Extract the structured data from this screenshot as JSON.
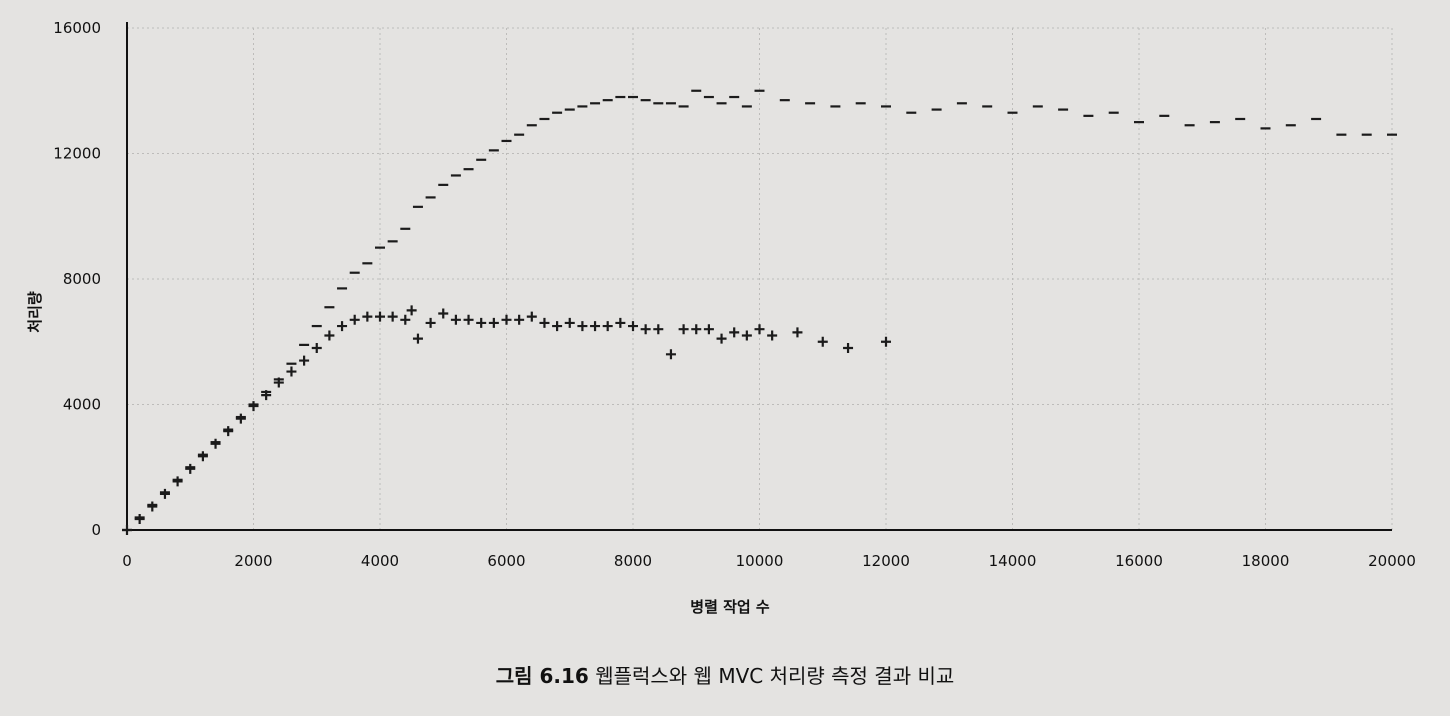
{
  "chart_data": {
    "type": "scatter",
    "xlabel": "병렬 작업 수",
    "ylabel": "처리량",
    "xlim": [
      0,
      20000
    ],
    "ylim": [
      0,
      16000
    ],
    "x_ticks": [
      0,
      2000,
      4000,
      6000,
      8000,
      10000,
      12000,
      14000,
      16000,
      18000,
      20000
    ],
    "y_ticks": [
      0,
      4000,
      8000,
      12000,
      16000
    ],
    "grid": true,
    "series": [
      {
        "marker": "dash",
        "points": [
          [
            0,
            0
          ],
          [
            200,
            400
          ],
          [
            400,
            800
          ],
          [
            600,
            1200
          ],
          [
            800,
            1600
          ],
          [
            1000,
            2000
          ],
          [
            1200,
            2400
          ],
          [
            1400,
            2800
          ],
          [
            1600,
            3200
          ],
          [
            1800,
            3600
          ],
          [
            2000,
            4000
          ],
          [
            2200,
            4400
          ],
          [
            2400,
            4800
          ],
          [
            2600,
            5300
          ],
          [
            2800,
            5900
          ],
          [
            3000,
            6500
          ],
          [
            3200,
            7100
          ],
          [
            3400,
            7700
          ],
          [
            3600,
            8200
          ],
          [
            3800,
            8500
          ],
          [
            4000,
            9000
          ],
          [
            4200,
            9200
          ],
          [
            4400,
            9600
          ],
          [
            4600,
            10300
          ],
          [
            4800,
            10600
          ],
          [
            5000,
            11000
          ],
          [
            5200,
            11300
          ],
          [
            5400,
            11500
          ],
          [
            5600,
            11800
          ],
          [
            5800,
            12100
          ],
          [
            6000,
            12400
          ],
          [
            6200,
            12600
          ],
          [
            6400,
            12900
          ],
          [
            6600,
            13100
          ],
          [
            6800,
            13300
          ],
          [
            7000,
            13400
          ],
          [
            7200,
            13500
          ],
          [
            7400,
            13600
          ],
          [
            7600,
            13700
          ],
          [
            7800,
            13800
          ],
          [
            8000,
            13800
          ],
          [
            8200,
            13700
          ],
          [
            8400,
            13600
          ],
          [
            8600,
            13600
          ],
          [
            8800,
            13500
          ],
          [
            9000,
            14000
          ],
          [
            9200,
            13800
          ],
          [
            9400,
            13600
          ],
          [
            9600,
            13800
          ],
          [
            9800,
            13500
          ],
          [
            10000,
            14000
          ],
          [
            10400,
            13700
          ],
          [
            10800,
            13600
          ],
          [
            11200,
            13500
          ],
          [
            11600,
            13600
          ],
          [
            12000,
            13500
          ],
          [
            12400,
            13300
          ],
          [
            12800,
            13400
          ],
          [
            13200,
            13600
          ],
          [
            13600,
            13500
          ],
          [
            14000,
            13300
          ],
          [
            14400,
            13500
          ],
          [
            14800,
            13400
          ],
          [
            15200,
            13200
          ],
          [
            15600,
            13300
          ],
          [
            16000,
            13000
          ],
          [
            16400,
            13200
          ],
          [
            16800,
            12900
          ],
          [
            17200,
            13000
          ],
          [
            17600,
            13100
          ],
          [
            18000,
            12800
          ],
          [
            18400,
            12900
          ],
          [
            18800,
            13100
          ],
          [
            19200,
            12600
          ],
          [
            19600,
            12600
          ],
          [
            20000,
            12600
          ]
        ]
      },
      {
        "marker": "plus",
        "points": [
          [
            0,
            0
          ],
          [
            200,
            350
          ],
          [
            400,
            750
          ],
          [
            600,
            1150
          ],
          [
            800,
            1550
          ],
          [
            1000,
            1950
          ],
          [
            1200,
            2350
          ],
          [
            1400,
            2750
          ],
          [
            1600,
            3150
          ],
          [
            1800,
            3550
          ],
          [
            2000,
            3950
          ],
          [
            2200,
            4300
          ],
          [
            2400,
            4700
          ],
          [
            2600,
            5050
          ],
          [
            2800,
            5400
          ],
          [
            3000,
            5800
          ],
          [
            3200,
            6200
          ],
          [
            3400,
            6500
          ],
          [
            3600,
            6700
          ],
          [
            3800,
            6800
          ],
          [
            4000,
            6800
          ],
          [
            4200,
            6800
          ],
          [
            4400,
            6700
          ],
          [
            4500,
            7000
          ],
          [
            4600,
            6100
          ],
          [
            4800,
            6600
          ],
          [
            5000,
            6900
          ],
          [
            5200,
            6700
          ],
          [
            5400,
            6700
          ],
          [
            5600,
            6600
          ],
          [
            5800,
            6600
          ],
          [
            6000,
            6700
          ],
          [
            6200,
            6700
          ],
          [
            6400,
            6800
          ],
          [
            6600,
            6600
          ],
          [
            6800,
            6500
          ],
          [
            7000,
            6600
          ],
          [
            7200,
            6500
          ],
          [
            7400,
            6500
          ],
          [
            7600,
            6500
          ],
          [
            7800,
            6600
          ],
          [
            8000,
            6500
          ],
          [
            8200,
            6400
          ],
          [
            8400,
            6400
          ],
          [
            8600,
            5600
          ],
          [
            8800,
            6400
          ],
          [
            9000,
            6400
          ],
          [
            9200,
            6400
          ],
          [
            9400,
            6100
          ],
          [
            9600,
            6300
          ],
          [
            9800,
            6200
          ],
          [
            10000,
            6400
          ],
          [
            10200,
            6200
          ],
          [
            10600,
            6300
          ],
          [
            11000,
            6000
          ],
          [
            11400,
            5800
          ],
          [
            12000,
            6000
          ]
        ]
      }
    ]
  },
  "caption": {
    "label": "그림 6.16",
    "text": "웹플럭스와 웹 MVC 처리량 측정 결과 비교"
  },
  "colors": {
    "background": "#e4e3e1",
    "grid": "#bdbcba",
    "marks": "#1b1b1b"
  }
}
